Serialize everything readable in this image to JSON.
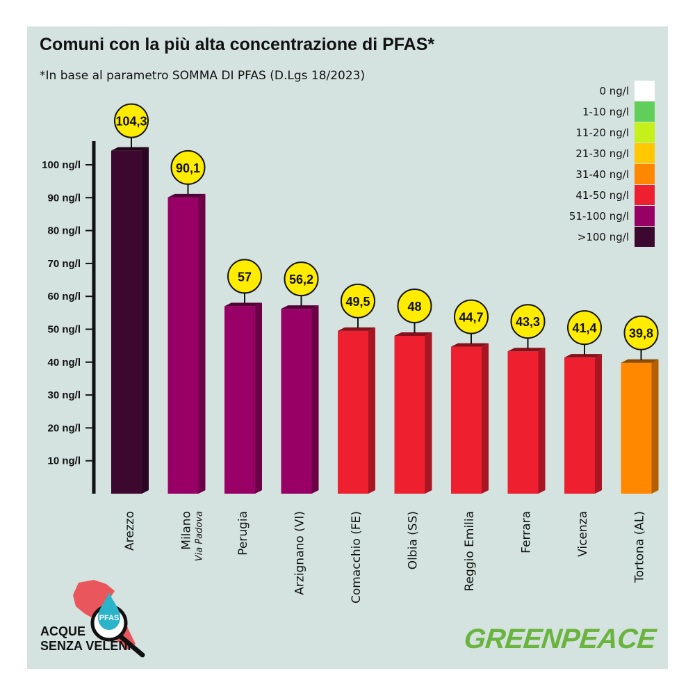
{
  "header": {
    "title": "Comuni con la più alta concentrazione di PFAS*",
    "subtitle": "*In base al parametro SOMMA DI PFAS (D.Lgs 18/2023)"
  },
  "legend": [
    {
      "label": "0 ng/l",
      "color": "#ffffff"
    },
    {
      "label": "1-10 ng/l",
      "color": "#5fcf5a"
    },
    {
      "label": "11-20 ng/l",
      "color": "#c6f01a"
    },
    {
      "label": "21-30 ng/l",
      "color": "#ffc800"
    },
    {
      "label": "31-40 ng/l",
      "color": "#ff8800"
    },
    {
      "label": "41-50 ng/l",
      "color": "#ee2030"
    },
    {
      "label": "51-100 ng/l",
      "color": "#990066"
    },
    {
      "label": ">100 ng/l",
      "color": "#3d0830"
    }
  ],
  "chart_data": {
    "type": "bar",
    "title": "Comuni con la più alta concentrazione di PFAS*",
    "subtitle": "*In base al parametro SOMMA DI PFAS (D.Lgs 18/2023)",
    "ylim": [
      0,
      110
    ],
    "yticks": [
      10,
      20,
      30,
      40,
      50,
      60,
      70,
      80,
      90,
      100
    ],
    "ytick_labels": [
      "10 ng/l",
      "20 ng/l",
      "30 ng/l",
      "40 ng/l",
      "50 ng/l",
      "60 ng/l",
      "70 ng/l",
      "80 ng/l",
      "90 ng/l",
      "100 ng/l"
    ],
    "categories": [
      "Arezzo",
      "Milano",
      "Perugia",
      "Arzignano (VI)",
      "Comacchio (FE)",
      "Olbia (SS)",
      "Reggio Emilia",
      "Ferrara",
      "Vicenza",
      "Tortona (AL)"
    ],
    "category_sublabels": [
      "",
      "Via Padova",
      "",
      "",
      "",
      "",
      "",
      "",
      "",
      ""
    ],
    "values": [
      104.3,
      90.1,
      57,
      56.2,
      49.5,
      48,
      44.7,
      43.3,
      41.4,
      39.8
    ],
    "value_labels": [
      "104,3",
      "90,1",
      "57",
      "56,2",
      "49,5",
      "48",
      "44,7",
      "43,3",
      "41,4",
      "39,8"
    ],
    "colors": [
      "#3d0830",
      "#990066",
      "#990066",
      "#990066",
      "#ee2030",
      "#ee2030",
      "#ee2030",
      "#ee2030",
      "#ee2030",
      "#ff8800"
    ],
    "grid": false,
    "legend_position": "top-right"
  },
  "logos": {
    "left_line1": "ACQUE",
    "left_line2": "SENZA VELENI",
    "left_badge": "PFAS",
    "right": "GREENPEACE"
  }
}
